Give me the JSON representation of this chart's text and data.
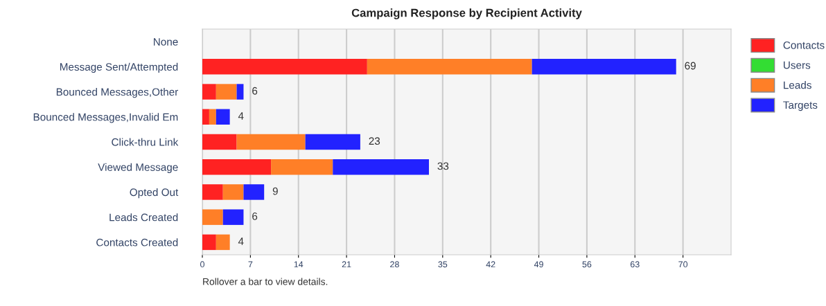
{
  "chart_data": {
    "type": "bar",
    "orientation": "horizontal",
    "stacked": true,
    "title": "Campaign Response by Recipient Activity",
    "categories": [
      "None",
      "Message Sent/Attempted",
      "Bounced Messages,Other",
      "Bounced Messages,Invalid Em",
      "Click-thru Link",
      "Viewed Message",
      "Opted Out",
      "Leads Created",
      "Contacts Created"
    ],
    "series": [
      {
        "name": "Contacts",
        "color": "#ff2222",
        "values": [
          0,
          24,
          2,
          1,
          5,
          10,
          3,
          0,
          2
        ]
      },
      {
        "name": "Users",
        "color": "#33dd33",
        "values": [
          0,
          0,
          0,
          0,
          0,
          0,
          0,
          0,
          0
        ]
      },
      {
        "name": "Leads",
        "color": "#ff7f27",
        "values": [
          0,
          24,
          3,
          1,
          10,
          9,
          3,
          3,
          2
        ]
      },
      {
        "name": "Targets",
        "color": "#2222ff",
        "values": [
          0,
          21,
          1,
          2,
          8,
          14,
          3,
          3,
          0
        ]
      }
    ],
    "totals": [
      null,
      "69",
      "6",
      "4",
      "23",
      "33",
      "9",
      "6",
      "4"
    ],
    "xlim": [
      0,
      77
    ],
    "xticks": [
      0,
      7,
      14,
      21,
      28,
      35,
      42,
      49,
      56,
      63,
      70
    ],
    "grid": "x",
    "legend": "top right",
    "annotations": [
      "Rollover a bar to view details."
    ]
  }
}
